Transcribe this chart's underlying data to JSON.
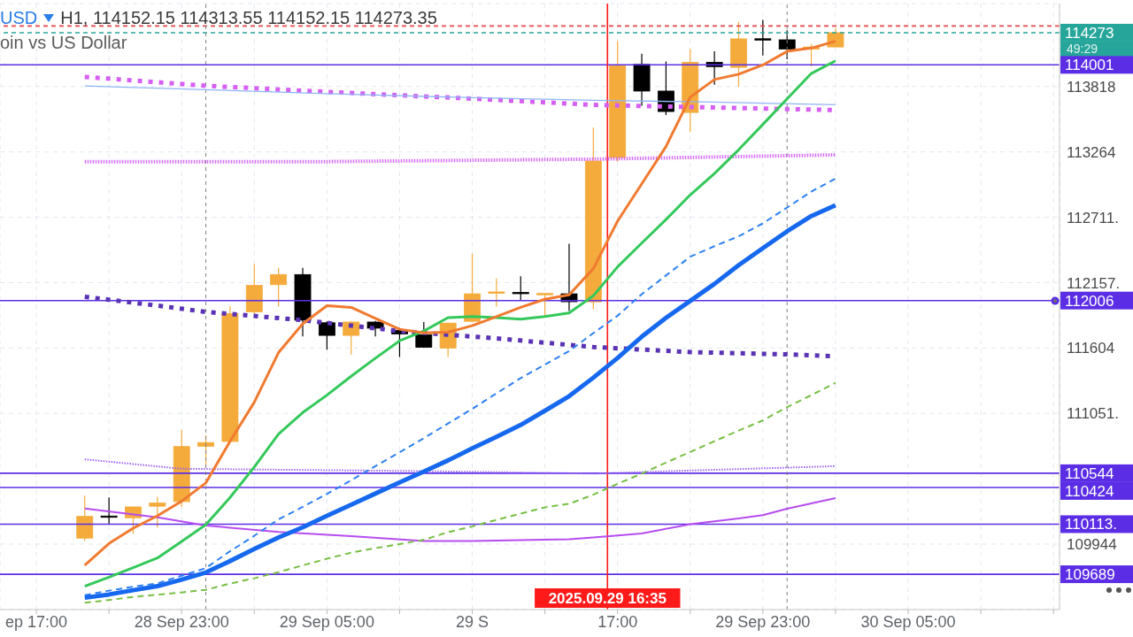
{
  "chart_data": {
    "type": "candlestick",
    "title": "USD",
    "subtitle": "oin vs US Dollar",
    "annotations": [
      "H1, 114152.15 114313.55 114152.15 114273.35",
      "49:29"
    ],
    "x": [
      "2025-09-28T19:00",
      "2025-09-28T20:00",
      "2025-09-28T21:00",
      "2025-09-28T22:00",
      "2025-09-28T23:00",
      "2025-09-29T00:00",
      "2025-09-29T01:00",
      "2025-09-29T02:00",
      "2025-09-29T03:00",
      "2025-09-29T04:00",
      "2025-09-29T05:00",
      "2025-09-29T06:00",
      "2025-09-29T07:00",
      "2025-09-29T08:00",
      "2025-09-29T09:00",
      "2025-09-29T10:00",
      "2025-09-29T11:00",
      "2025-09-29T12:00",
      "2025-09-29T13:00",
      "2025-09-29T14:00",
      "2025-09-29T15:00",
      "2025-09-29T16:00",
      "2025-09-29T17:00",
      "2025-09-29T18:00",
      "2025-09-29T19:00",
      "2025-09-29T20:00",
      "2025-09-29T21:00",
      "2025-09-29T22:00",
      "2025-09-29T23:00",
      "2025-09-30T00:00",
      "2025-09-30T01:00",
      "2025-09-30T02:00"
    ],
    "ohlc": [
      [
        109995,
        110354,
        109971,
        110179
      ],
      [
        110182,
        110339,
        110109,
        110179
      ],
      [
        110167,
        110262,
        110032,
        110259
      ],
      [
        110265,
        110345,
        110084,
        110292
      ],
      [
        110304,
        110911,
        110256,
        110770
      ],
      [
        110773,
        110866,
        110598,
        110804
      ],
      [
        110813,
        111956,
        110810,
        111895
      ],
      [
        111910,
        112314,
        111890,
        112134
      ],
      [
        112140,
        112283,
        111955,
        112226
      ],
      [
        112226,
        112283,
        111702,
        111840
      ],
      [
        111818,
        111830,
        111589,
        111711
      ],
      [
        111711,
        111830,
        111549,
        111824
      ],
      [
        111824,
        111833,
        111702,
        111772
      ],
      [
        111754,
        111775,
        111528,
        111723
      ],
      [
        111717,
        111824,
        111605,
        111610
      ],
      [
        111603,
        111820,
        111528,
        111815
      ],
      [
        111830,
        112400,
        111825,
        112063
      ],
      [
        112068,
        112192,
        111955,
        112079
      ],
      [
        112075,
        112211,
        112008,
        112070
      ],
      [
        112060,
        112066,
        111873,
        112066
      ],
      [
        112063,
        112486,
        111918,
        111996
      ],
      [
        111995,
        113469,
        111933,
        113187
      ],
      [
        113216,
        114201,
        113181,
        113994
      ],
      [
        114005,
        114095,
        113655,
        113779
      ],
      [
        113779,
        114029,
        113577,
        113606
      ],
      [
        113598,
        114135,
        113431,
        114023
      ],
      [
        114023,
        114115,
        113833,
        113986
      ],
      [
        113980,
        114365,
        113813,
        114221
      ],
      [
        114222,
        114382,
        114080,
        114215
      ],
      [
        114213,
        114293,
        114049,
        114135
      ],
      [
        114135,
        114178,
        113986,
        114152
      ],
      [
        114152.15,
        114313.55,
        114152.15,
        114273.35
      ]
    ],
    "colors": [
      "#f4ab3c",
      "#000000",
      "#f4ab3c",
      "#f4ab3c",
      "#f4ab3c",
      "#f4ab3c",
      "#f4ab3c",
      "#f4ab3c",
      "#f4ab3c",
      "#000000",
      "#000000",
      "#f4ab3c",
      "#000000",
      "#000000",
      "#000000",
      "#f4ab3c",
      "#f4ab3c",
      "#f4ab3c",
      "#000000",
      "#f4ab3c",
      "#000000",
      "#f4ab3c",
      "#f4ab3c",
      "#000000",
      "#000000",
      "#f4ab3c",
      "#000000",
      "#f4ab3c",
      "#000000",
      "#000000",
      "#f4ab3c",
      "#f4ab3c"
    ],
    "series": [
      {
        "type": "line",
        "color": "#d660f2",
        "line_style": "dotted",
        "x": [
          "2025-09-28T19:00",
          "2025-09-29T00:00",
          "2025-09-29T05:00",
          "2025-09-29T11:00",
          "2025-09-29T16:00",
          "2025-09-29T20:00",
          "2025-09-30T02:00"
        ],
        "values": [
          113899,
          113824,
          113772,
          113715,
          113662,
          113644,
          113618
        ]
      },
      {
        "type": "line",
        "color": "#8fb4f5",
        "line_style": "solid",
        "x": [
          "2025-09-28T19:00",
          "2025-09-29T00:00",
          "2025-09-29T05:00",
          "2025-09-29T11:00",
          "2025-09-29T16:00",
          "2025-09-29T20:00",
          "2025-09-30T02:00"
        ],
        "values": [
          113822,
          113791,
          113757,
          113723,
          113701,
          113689,
          113664
        ]
      },
      {
        "type": "line",
        "color": "#d56ef5",
        "line_style": "dotted",
        "x": [
          "2025-09-28T19:00",
          "2025-09-29T05:00",
          "2025-09-29T16:00",
          "2025-09-30T02:00"
        ],
        "values": [
          113182,
          113182,
          113203,
          113239
        ]
      },
      {
        "type": "line",
        "color": "#5a33b5",
        "line_style": "dotted",
        "x": [
          "2025-09-28T19:00",
          "2025-09-28T22:00",
          "2025-09-29T00:00",
          "2025-09-29T04:00",
          "2025-09-29T08:00",
          "2025-09-29T12:00",
          "2025-09-29T16:00",
          "2025-09-29T20:00",
          "2025-09-30T00:00",
          "2025-09-30T02:00"
        ],
        "values": [
          112038,
          111963,
          111910,
          111840,
          111747,
          111686,
          111612,
          111570,
          111550,
          111534
        ]
      },
      {
        "type": "line",
        "color": "#9d63f2",
        "line_style": "dotted",
        "x": [
          "2025-09-28T19:00",
          "2025-09-28T23:00",
          "2025-09-29T03:00",
          "2025-09-29T09:00",
          "2025-09-29T16:00",
          "2025-09-29T20:00",
          "2025-09-30T02:00"
        ],
        "values": [
          110662,
          110582,
          110574,
          110562,
          110541,
          110567,
          110604
        ]
      },
      {
        "type": "line",
        "color": "#b64cf0",
        "line_style": "solid",
        "x": [
          "2025-09-28T19:00",
          "2025-09-28T22:00",
          "2025-09-29T00:00",
          "2025-09-29T03:00",
          "2025-09-29T06:00",
          "2025-09-29T09:00",
          "2025-09-29T11:00",
          "2025-09-29T15:00",
          "2025-09-29T16:00",
          "2025-09-29T18:00",
          "2025-09-29T20:00",
          "2025-09-29T22:00",
          "2025-09-29T23:00",
          "2025-09-30T00:00",
          "2025-09-30T02:00"
        ],
        "values": [
          110245,
          110170,
          110101,
          110047,
          110011,
          109971,
          109971,
          109985,
          110001,
          110034,
          110112,
          110162,
          110189,
          110244,
          110334
        ]
      },
      {
        "type": "line",
        "color": "#78bf45",
        "line_style": "dashed",
        "values": [
          109448,
          109471,
          109497,
          109516,
          109535,
          109557,
          109610,
          109655,
          109707,
          109764,
          109820,
          109872,
          109910,
          109944,
          109981,
          110045,
          110094,
          110150,
          110203,
          110255,
          110285,
          110363,
          110454,
          110541,
          110634,
          110724,
          110815,
          110905,
          110991,
          111104,
          111205,
          111310
        ]
      },
      {
        "type": "line",
        "color": "#2f80f2",
        "line_style": "dashed",
        "values": [
          109511,
          109550,
          109584,
          109612,
          109677,
          109741,
          109884,
          110015,
          110154,
          110259,
          110369,
          110484,
          110604,
          110721,
          110841,
          110965,
          111089,
          111220,
          111349,
          111464,
          111578,
          111730,
          111877,
          112060,
          112218,
          112377,
          112466,
          112549,
          112659,
          112793,
          112928,
          113038
        ]
      },
      {
        "type": "line",
        "color": "#1668ee",
        "line_style": "solid",
        "values": [
          109490,
          109518,
          109554,
          109588,
          109644,
          109704,
          109801,
          109903,
          110000,
          110086,
          110184,
          110277,
          110372,
          110466,
          110559,
          110653,
          110754,
          110852,
          110953,
          111073,
          111196,
          111353,
          111520,
          111700,
          111860,
          112003,
          112147,
          112305,
          112449,
          112592,
          112721,
          112813
        ]
      },
      {
        "type": "line",
        "color": "#34c85a",
        "line_style": "solid",
        "values": [
          109587,
          109665,
          109745,
          109827,
          109966,
          110109,
          110339,
          110597,
          110875,
          111058,
          111205,
          111365,
          111518,
          111665,
          111748,
          111861,
          111870,
          111861,
          111849,
          111870,
          111901,
          112046,
          112291,
          112492,
          112692,
          112900,
          113081,
          113282,
          113497,
          113713,
          113928,
          114035
        ]
      },
      {
        "type": "line",
        "color": "#f07a30",
        "line_style": "solid",
        "values": [
          109766,
          109949,
          110079,
          110184,
          110308,
          110462,
          110815,
          111145,
          111565,
          111809,
          111963,
          111948,
          111855,
          111763,
          111733,
          111738,
          111793,
          111870,
          111948,
          112017,
          112054,
          112276,
          112678,
          112994,
          113310,
          113727,
          113877,
          113922,
          114000,
          114115,
          114143,
          114201
        ]
      }
    ],
    "xlim": [
      "2025-09-28T15:30",
      "2025-09-30T11:15"
    ],
    "xticks": [
      {
        "value": "2025-09-28T17:00",
        "label": "ep 17:00"
      },
      {
        "value": "2025-09-28T20:00",
        "label": null
      },
      {
        "value": "2025-09-28T23:00",
        "label": "28 Sep 23:00"
      },
      {
        "value": "2025-09-29T02:00",
        "label": null
      },
      {
        "value": "2025-09-29T05:00",
        "label": "29 Sep 05:00"
      },
      {
        "value": "2025-09-29T08:00",
        "label": null
      },
      {
        "value": "2025-09-29T11:00",
        "label": "29 S"
      },
      {
        "value": "2025-09-29T14:00",
        "label": null
      },
      {
        "value": "2025-09-29T17:00",
        "label": "17:00"
      },
      {
        "value": "2025-09-29T20:00",
        "label": null
      },
      {
        "value": "2025-09-29T23:00",
        "label": "29 Sep 23:00"
      },
      {
        "value": "2025-09-30T02:00",
        "label": null
      },
      {
        "value": "2025-09-30T05:00",
        "label": "30 Sep 05:00"
      },
      {
        "value": "2025-09-30T08:00",
        "label": null
      },
      {
        "value": "2025-09-30T11:00",
        "label": null
      }
    ],
    "ylim": [
      109390,
      114520
    ],
    "yticks": [
      109944,
      {
        "value": 111051,
        "label": "111051."
      },
      111604,
      {
        "value": 112157,
        "label": "112157."
      },
      {
        "value": 112711,
        "label": "112711."
      },
      113264,
      113818
    ],
    "grid": true,
    "ref_lines": [
      {
        "axis": "y",
        "value": 114330,
        "color": "#e5484d",
        "line_style": "dashed"
      },
      {
        "axis": "y",
        "value": 114273.35,
        "label": "114273",
        "color": "#26a69a",
        "line_style": "dashed"
      },
      {
        "axis": "y",
        "value": 114001,
        "label": "114001",
        "color": "#5b2ee6"
      },
      {
        "axis": "y",
        "value": 112006,
        "label": "112006",
        "color": "#5b2ee6"
      },
      {
        "axis": "y",
        "value": 110544,
        "label": "110544",
        "color": "#5b2ee6"
      },
      {
        "axis": "y",
        "value": 110424,
        "label": "110424",
        "color": "#5b2ee6"
      },
      {
        "axis": "y",
        "value": 110113,
        "label": "110113.",
        "color": "#5b2ee6"
      },
      {
        "axis": "y",
        "value": 109689,
        "label": "109689",
        "color": "#5b2ee6"
      },
      {
        "axis": "x",
        "value": "2025-09-29T00:00",
        "color": "#808080",
        "line_style": "dashed"
      },
      {
        "axis": "x",
        "value": "2025-09-30T00:00",
        "color": "#808080",
        "line_style": "dashed"
      },
      {
        "axis": "x",
        "value": "2025-09-29T16:35",
        "label": "2025.09.29 16:35",
        "color": "#ff1a1a"
      }
    ]
  }
}
